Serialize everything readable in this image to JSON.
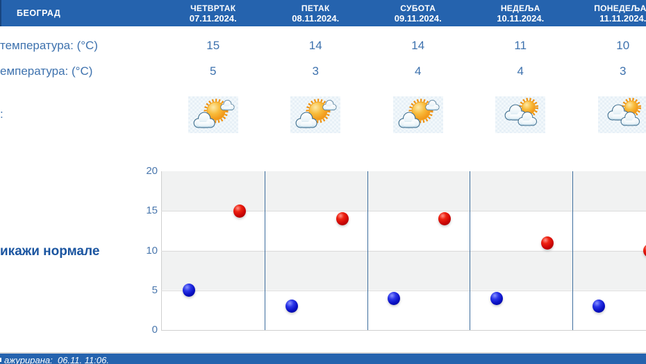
{
  "header": {
    "city": "БЕОГРАД",
    "days": [
      {
        "name": "ЧЕТВРТАК",
        "date": "07.11.2024."
      },
      {
        "name": "ПЕТАК",
        "date": "08.11.2024."
      },
      {
        "name": "СУБОТА",
        "date": "09.11.2024."
      },
      {
        "name": "НЕДЕЉА",
        "date": "10.11.2024."
      },
      {
        "name": "ПОНЕДЕЉАК",
        "date": "11.11.2024."
      }
    ]
  },
  "rows": {
    "max_label": "температура: (°C)",
    "min_label": "емпература: (°C)",
    "weather_label": ":",
    "max_values": [
      15,
      14,
      14,
      11,
      10
    ],
    "min_values": [
      5,
      3,
      4,
      4,
      3
    ],
    "icons": [
      "partly-sunny",
      "partly-sunny",
      "partly-sunny",
      "mostly-cloudy",
      "mostly-cloudy"
    ]
  },
  "normals_link_label": "икажи нормале",
  "footer": {
    "updated_text": "ажурирана:  06.11. 11:06."
  },
  "colors": {
    "header_bg": "#2563ae",
    "temp_text": "#3e72ae",
    "link_text": "#1b55a0",
    "max_dot": "#cc0505",
    "min_dot": "#0a10c4",
    "band_gray": "#f1f2f2",
    "separator_line": "#3e6e9e"
  },
  "chart_data": {
    "type": "scatter",
    "categories": [
      "07.11.2024.",
      "08.11.2024.",
      "09.11.2024.",
      "10.11.2024.",
      "11.11.2024."
    ],
    "series": [
      {
        "name": "max",
        "color": "#cc0505",
        "values": [
          15,
          14,
          14,
          11,
          10
        ]
      },
      {
        "name": "min",
        "color": "#0a10c4",
        "values": [
          5,
          3,
          4,
          4,
          3
        ]
      }
    ],
    "title": "",
    "xlabel": "",
    "ylabel": "",
    "ylim": [
      0,
      20
    ],
    "yticks": [
      0,
      5,
      10,
      15,
      20
    ],
    "grid": "horizontal gridlines every 5, alternating gray/white bands, vertical day separators",
    "legend": "none"
  }
}
